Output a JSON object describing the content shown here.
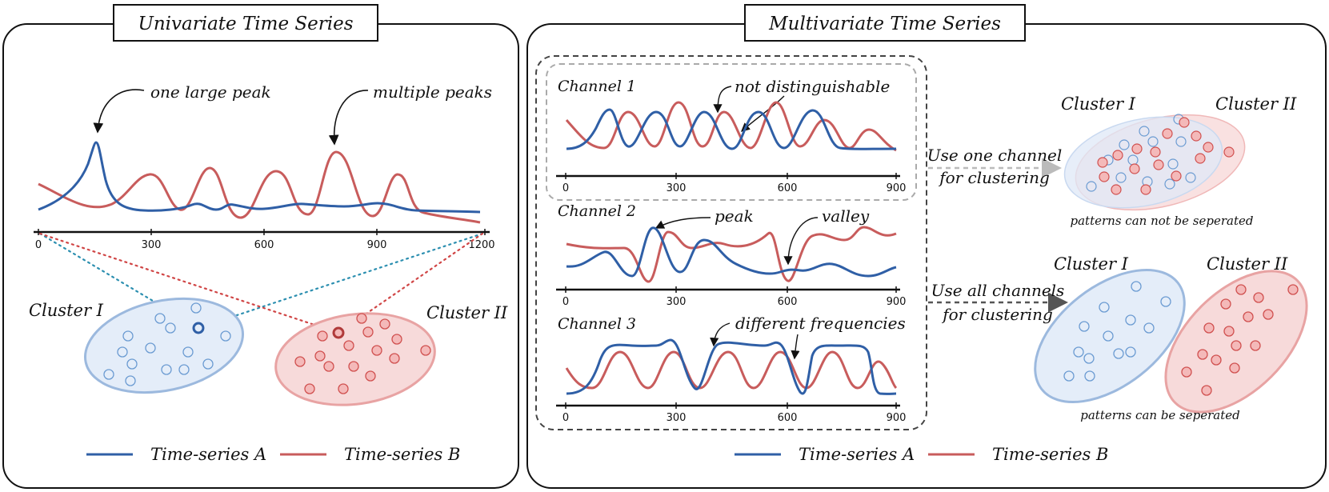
{
  "colors": {
    "series_a": "#2f5fa6",
    "series_b": "#c85c5c",
    "blue_fill": "#e4edf9",
    "red_fill": "#f7dada",
    "blue_dot": "#6b9bd2",
    "red_dot": "#d0504f"
  },
  "left_panel": {
    "title": "Univariate Time Series",
    "annotation_peak": "one large peak",
    "annotation_multi": "multiple peaks",
    "ticks": [
      "0",
      "300",
      "600",
      "900",
      "1200"
    ],
    "cluster_1": "Cluster I",
    "cluster_2": "Cluster II",
    "legend_a": "Time-series A",
    "legend_b": "Time-series B"
  },
  "right_panel": {
    "title": "Multivariate Time Series",
    "channel_1": "Channel 1",
    "channel_2": "Channel 2",
    "channel_3": "Channel 3",
    "ann_not_dist": "not distinguishable",
    "ann_peak": "peak",
    "ann_valley": "valley",
    "ann_freq": "different frequencies",
    "ticks": [
      "0",
      "300",
      "600",
      "900"
    ],
    "use_one_1": "Use one channel",
    "use_one_2": "for clustering",
    "use_all_1": "Use all channels",
    "use_all_2": "for clustering",
    "cluster_1": "Cluster I",
    "cluster_2": "Cluster II",
    "caption_not_sep": "patterns can not be seperated",
    "caption_sep": "patterns can be seperated",
    "legend_a": "Time-series A",
    "legend_b": "Time-series B"
  }
}
